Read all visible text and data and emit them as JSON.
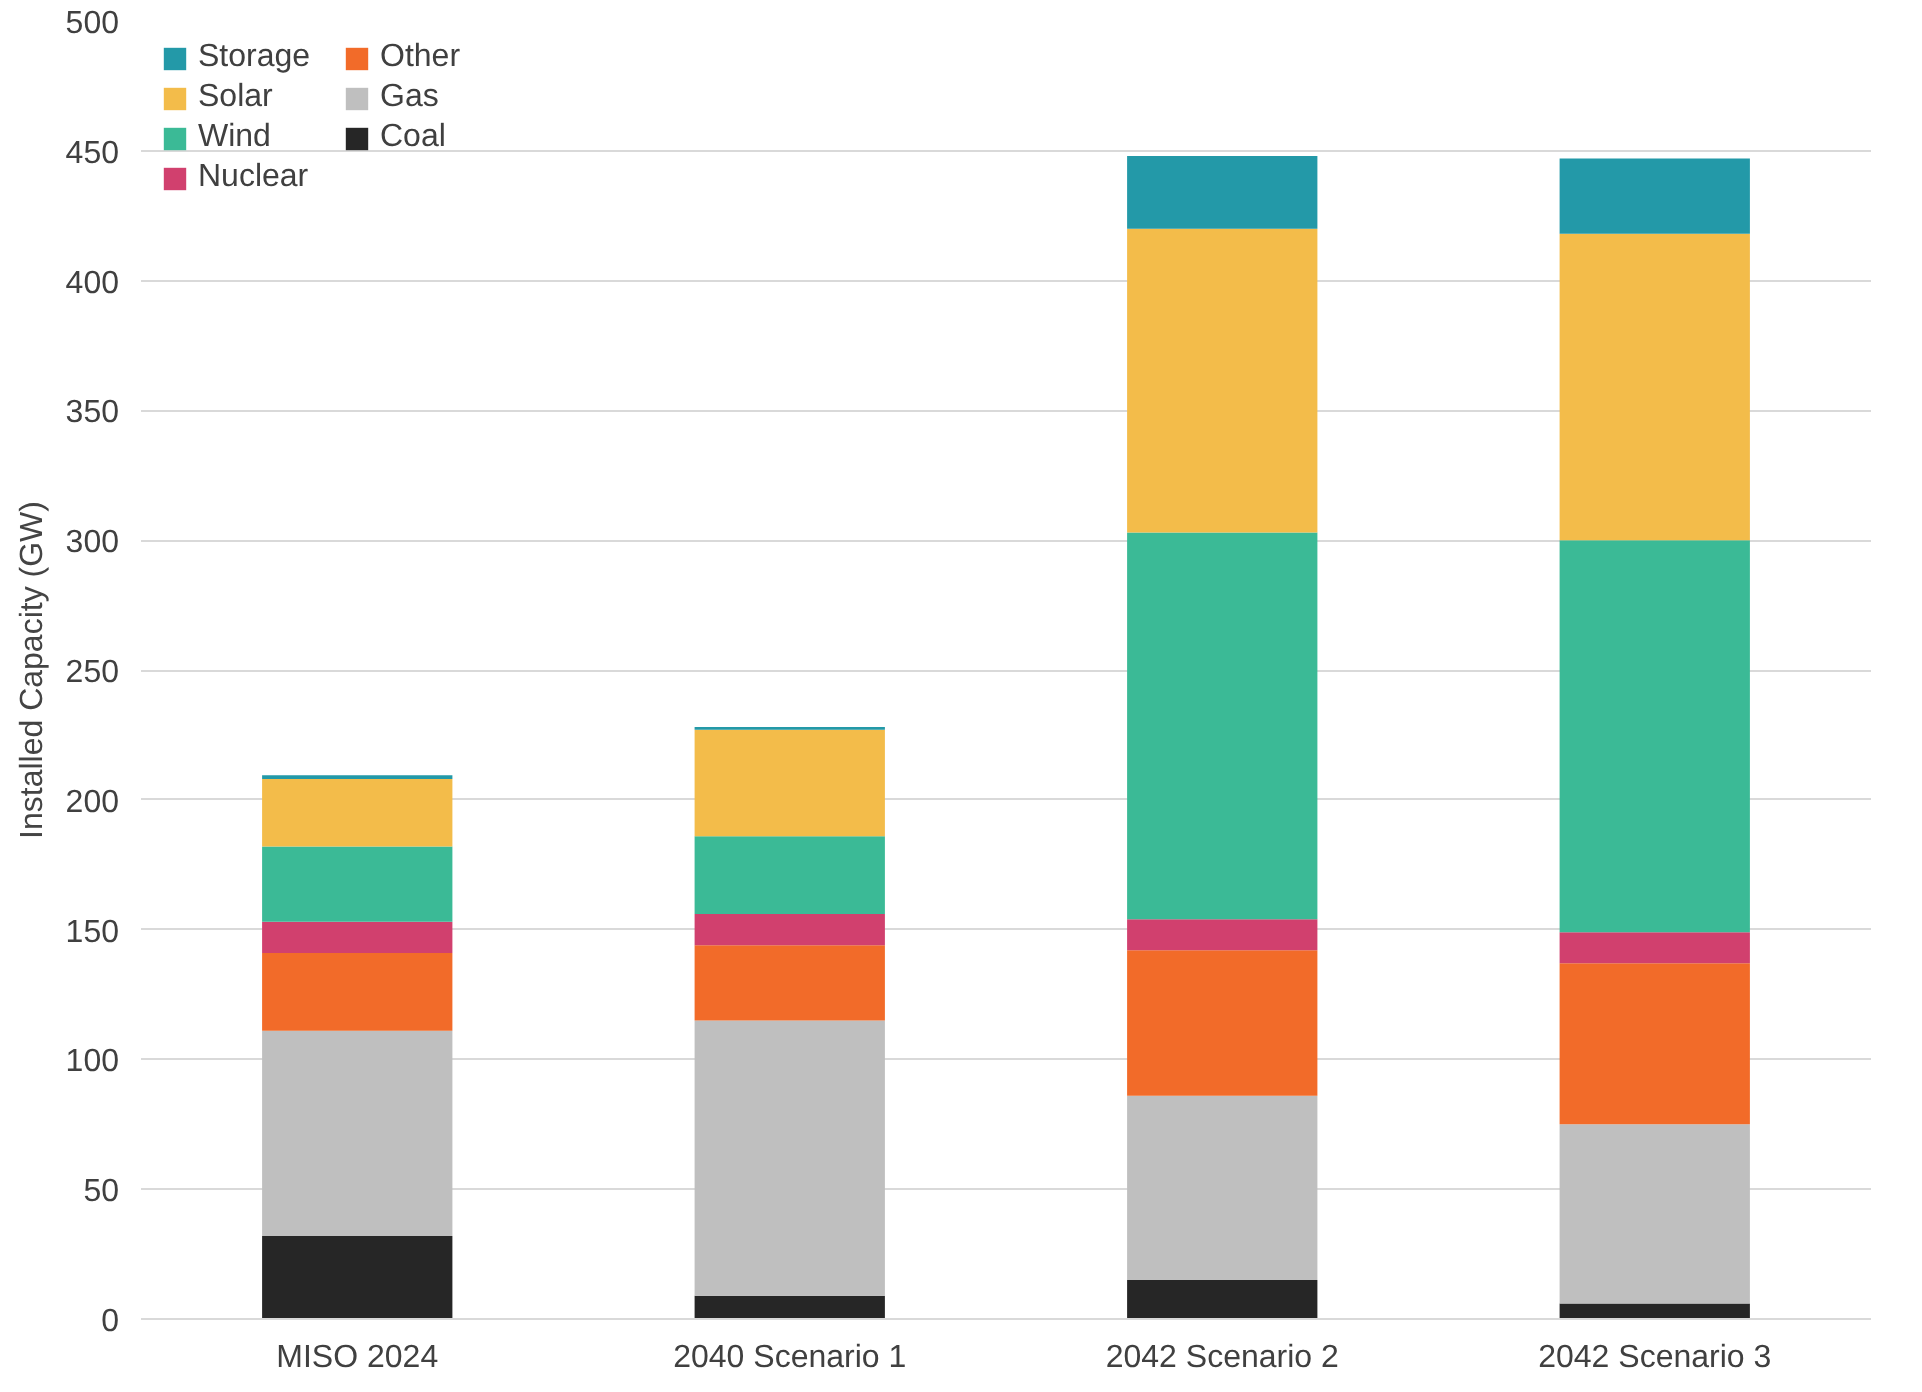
{
  "chart_data": {
    "type": "bar",
    "stacked": true,
    "ylabel": "Installed Capacity (GW)",
    "categories": [
      "MISO 2024",
      "2040 Scenario 1",
      "2042 Scenario 2",
      "2042 Scenario 3"
    ],
    "series": [
      {
        "name": "Coal",
        "color": "#262626",
        "values": [
          32,
          9,
          15,
          6
        ]
      },
      {
        "name": "Gas",
        "color": "#bfbfbf",
        "values": [
          79,
          106,
          71,
          69
        ]
      },
      {
        "name": "Other",
        "color": "#f26b29",
        "values": [
          30,
          29,
          56,
          62
        ]
      },
      {
        "name": "Nuclear",
        "color": "#d1406e",
        "values": [
          12,
          12,
          12,
          12
        ]
      },
      {
        "name": "Wind",
        "color": "#3bba96",
        "values": [
          29,
          30,
          149,
          151
        ]
      },
      {
        "name": "Solar",
        "color": "#f3bc4a",
        "values": [
          26,
          41,
          117,
          118
        ]
      },
      {
        "name": "Storage",
        "color": "#2399a8",
        "values": [
          1.5,
          1,
          28,
          29
        ]
      }
    ],
    "ylim": [
      0,
      500
    ],
    "yticks": [
      0,
      50,
      100,
      150,
      200,
      250,
      300,
      350,
      400,
      450,
      500
    ],
    "grid": "y",
    "legend": "top left"
  }
}
